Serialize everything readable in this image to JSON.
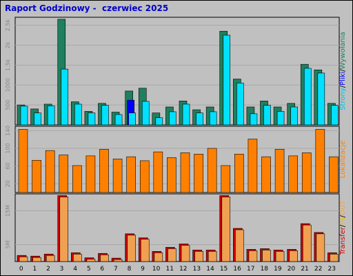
{
  "header": {
    "title": "Raport Godzinowy -  czerwiec 2025"
  },
  "colors": {
    "background": "#c0c0c0",
    "plot_background": "#c0c0c0",
    "grid": "#a8a8a8",
    "hits": "#1f7f5f",
    "files": "#00e0ff",
    "pages": "#0000ff",
    "visits": "#ff8000",
    "sites": "#ff8000",
    "kbytes": "#cc0000",
    "kbytes_inner": "#f0a050"
  },
  "chart_data": [
    {
      "type": "bar",
      "categories": [
        "0",
        "1",
        "2",
        "3",
        "4",
        "5",
        "6",
        "7",
        "8",
        "9",
        "10",
        "11",
        "12",
        "13",
        "14",
        "15",
        "16",
        "17",
        "18",
        "19",
        "20",
        "21",
        "22",
        "23"
      ],
      "ylim": [
        0,
        2700
      ],
      "ytick_labels": [
        "500",
        "1000",
        "1.5k",
        "2k",
        "2.5k"
      ],
      "ytick_values": [
        500,
        1000,
        1500,
        2000,
        2500
      ],
      "right_label_parts": [
        {
          "text": "Strony",
          "color": "#00c0e0"
        },
        {
          "text": "/",
          "color": "#000000"
        },
        {
          "text": "Pliki",
          "color": "#0000ff"
        },
        {
          "text": "/",
          "color": "#000000"
        },
        {
          "text": "Wywołania",
          "color": "#1f7f5f"
        }
      ],
      "series": [
        {
          "name": "Wywołania",
          "values": [
            500,
            400,
            520,
            2650,
            580,
            340,
            540,
            320,
            850,
            920,
            300,
            450,
            600,
            380,
            450,
            2350,
            1150,
            450,
            600,
            450,
            540,
            1520,
            1380,
            540
          ]
        },
        {
          "name": "Pliki",
          "values": [
            470,
            300,
            480,
            1400,
            520,
            300,
            490,
            260,
            300,
            590,
            180,
            330,
            520,
            300,
            330,
            2250,
            1050,
            280,
            490,
            340,
            450,
            1420,
            1300,
            490
          ]
        },
        {
          "name": "Strony",
          "values": [
            0,
            0,
            0,
            0,
            0,
            0,
            0,
            0,
            620,
            0,
            0,
            0,
            0,
            0,
            0,
            0,
            0,
            0,
            0,
            0,
            0,
            0,
            0,
            0
          ]
        }
      ]
    },
    {
      "type": "bar",
      "categories": [
        "0",
        "1",
        "2",
        "3",
        "4",
        "5",
        "6",
        "7",
        "8",
        "9",
        "10",
        "11",
        "12",
        "13",
        "14",
        "15",
        "16",
        "17",
        "18",
        "19",
        "20",
        "21",
        "22",
        "23"
      ],
      "ylim": [
        0,
        150
      ],
      "ytick_labels": [
        "20",
        "60",
        "100",
        "140"
      ],
      "ytick_values": [
        20,
        60,
        100,
        140
      ],
      "right_label_parts": [
        {
          "text": "Lokalizacje",
          "color": "#ff8000"
        }
      ],
      "series": [
        {
          "name": "Lokalizacje",
          "values": [
            143,
            73,
            95,
            85,
            61,
            83,
            98,
            76,
            81,
            72,
            92,
            79,
            90,
            87,
            100,
            61,
            87,
            121,
            81,
            98,
            83,
            90,
            143,
            81
          ]
        }
      ]
    },
    {
      "type": "bar",
      "categories": [
        "0",
        "1",
        "2",
        "3",
        "4",
        "5",
        "6",
        "7",
        "8",
        "9",
        "10",
        "11",
        "12",
        "13",
        "14",
        "15",
        "16",
        "17",
        "18",
        "19",
        "20",
        "21",
        "22",
        "23"
      ],
      "ylim": [
        0,
        20
      ],
      "ytick_labels": [
        "5M",
        "15M"
      ],
      "ytick_values": [
        5,
        15
      ],
      "right_label_parts": [
        {
          "text": "Transfer",
          "color": "#cc0000"
        },
        {
          "text": "/",
          "color": "#000000"
        },
        {
          "text": "IN",
          "color": "#f0c000"
        },
        {
          "text": "/",
          "color": "#000000"
        },
        {
          "text": "OUT",
          "color": "#f0a050"
        }
      ],
      "series": [
        {
          "name": "Transfer",
          "values": [
            1.8,
            1.6,
            2.2,
            19.5,
            2.6,
            1.1,
            2.4,
            1.0,
            8.2,
            7.0,
            3.0,
            4.2,
            5.2,
            3.4,
            3.4,
            19.5,
            9.8,
            3.6,
            3.8,
            3.4,
            3.6,
            11.2,
            8.6,
            2.6
          ]
        }
      ]
    }
  ]
}
